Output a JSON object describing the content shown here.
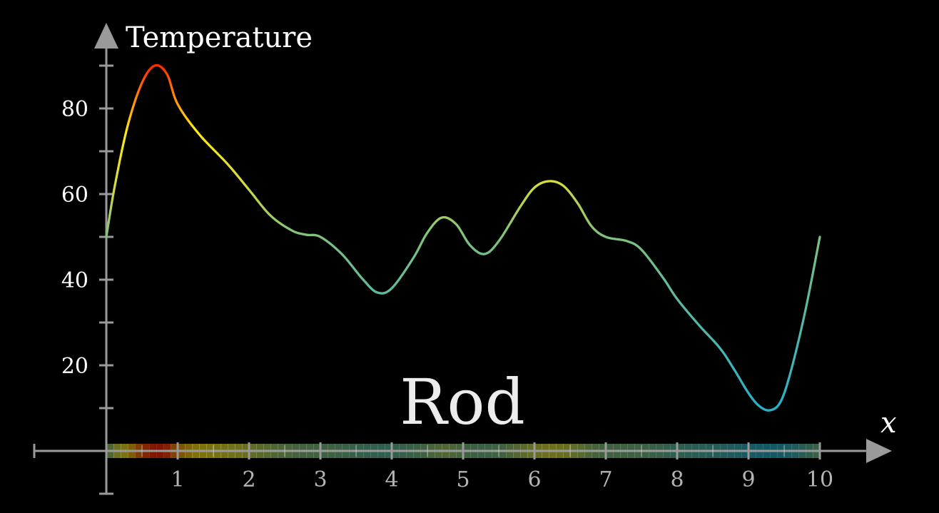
{
  "chart_data": {
    "type": "line",
    "ylabel": "Temperature",
    "xlabel": "x",
    "annotation": "Rod",
    "xlim": [
      0,
      10
    ],
    "ylim": [
      0,
      90
    ],
    "x_ticks": [
      1,
      2,
      3,
      4,
      5,
      6,
      7,
      8,
      9,
      10
    ],
    "x_tick_labels": [
      "1",
      "2",
      "3",
      "4",
      "5",
      "6",
      "7",
      "8",
      "9",
      "10"
    ],
    "y_ticks": [
      10,
      20,
      30,
      40,
      50,
      60,
      70,
      80,
      90
    ],
    "y_tick_labels": [
      {
        "value": 20,
        "label": "20"
      },
      {
        "value": 40,
        "label": "40"
      },
      {
        "value": 60,
        "label": "60"
      },
      {
        "value": 80,
        "label": "80"
      }
    ],
    "grid": false,
    "series": [
      {
        "x": [
          0,
          0.12,
          0.3,
          0.5,
          0.68,
          0.85,
          1.0,
          1.3,
          1.7,
          2.0,
          2.3,
          2.6,
          2.8,
          3.0,
          3.3,
          3.6,
          3.8,
          4.0,
          4.3,
          4.5,
          4.7,
          4.9,
          5.1,
          5.3,
          5.5,
          5.8,
          6.0,
          6.2,
          6.4,
          6.6,
          6.8,
          7.0,
          7.3,
          7.5,
          7.8,
          8.0,
          8.3,
          8.6,
          8.8,
          9.0,
          9.15,
          9.3,
          9.45,
          9.6,
          9.8,
          10.0
        ],
        "y": [
          50,
          62,
          76,
          86,
          90,
          88,
          81,
          74,
          67,
          61,
          55,
          51.5,
          50.5,
          50,
          46,
          40,
          37,
          38,
          45,
          51,
          54.5,
          53,
          48,
          46,
          49,
          57,
          61.5,
          63,
          62,
          58,
          52.5,
          50,
          49,
          47,
          40.5,
          35.5,
          29.5,
          24,
          19,
          13.5,
          10.5,
          9.5,
          11.5,
          19,
          33,
          50
        ]
      }
    ],
    "colors": {
      "curve_hot": "#ff2a00",
      "curve_warm": "#fff200",
      "curve_mild": "#7ec27e",
      "curve_cool": "#2ab0c8",
      "axis": "#9a9a9a"
    }
  }
}
